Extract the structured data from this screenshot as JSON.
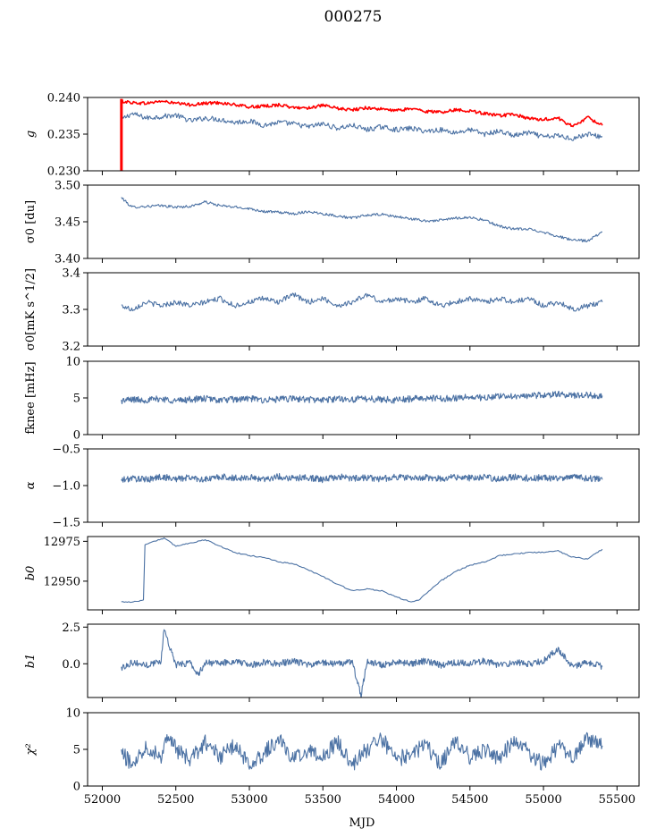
{
  "figure": {
    "title": "000275"
  },
  "chart_data": [
    {
      "type": "line",
      "ylabel": "g",
      "ylim": [
        0.23,
        0.24
      ],
      "yticks": [
        "0.230",
        "0.235",
        "0.240"
      ],
      "ytick_values": [
        0.23,
        0.235,
        0.24
      ],
      "xlim": [
        51900,
        55650
      ],
      "series": [
        {
          "color": "#4c72a4",
          "x": [
            52130,
            52200,
            52300,
            52400,
            52500,
            52600,
            52700,
            52800,
            52900,
            53000,
            53100,
            53200,
            53300,
            53400,
            53500,
            53600,
            53700,
            53800,
            53900,
            54000,
            54100,
            54200,
            54300,
            54400,
            54500,
            54600,
            54700,
            54800,
            54900,
            55000,
            55100,
            55200,
            55300,
            55400
          ],
          "y": [
            0.237,
            0.2378,
            0.2372,
            0.2374,
            0.2376,
            0.2368,
            0.2372,
            0.237,
            0.2366,
            0.2368,
            0.2362,
            0.2366,
            0.2364,
            0.236,
            0.2364,
            0.2358,
            0.2362,
            0.2356,
            0.236,
            0.2356,
            0.2358,
            0.2354,
            0.2356,
            0.2352,
            0.2356,
            0.235,
            0.2354,
            0.2348,
            0.2352,
            0.2346,
            0.2348,
            0.2344,
            0.235,
            0.2346
          ]
        },
        {
          "color": "#ff0000",
          "x": [
            52130,
            52200,
            52300,
            52400,
            52500,
            52600,
            52700,
            52800,
            52900,
            53000,
            53100,
            53200,
            53300,
            53400,
            53500,
            53600,
            53700,
            53800,
            53900,
            54000,
            54100,
            54200,
            54300,
            54400,
            54500,
            54600,
            54700,
            54800,
            54900,
            55000,
            55100,
            55200,
            55300,
            55400
          ],
          "y": [
            0.2395,
            0.2393,
            0.2392,
            0.2395,
            0.2392,
            0.239,
            0.2392,
            0.2393,
            0.239,
            0.2387,
            0.2388,
            0.239,
            0.2386,
            0.2386,
            0.2389,
            0.2385,
            0.2383,
            0.2386,
            0.2384,
            0.2382,
            0.2385,
            0.2381,
            0.238,
            0.2383,
            0.2382,
            0.2378,
            0.2375,
            0.2377,
            0.2371,
            0.237,
            0.2372,
            0.236,
            0.2373,
            0.2362
          ]
        }
      ],
      "glitch_series": {
        "color": "#ff0000",
        "x": 52130,
        "y_from": 0.2398,
        "y_to": 0.23
      }
    },
    {
      "type": "line",
      "ylabel": "σ0 [du]",
      "ylim": [
        3.4,
        3.5
      ],
      "yticks": [
        "3.40",
        "3.45",
        "3.50"
      ],
      "ytick_values": [
        3.4,
        3.45,
        3.5
      ],
      "xlim": [
        51900,
        55650
      ],
      "series": [
        {
          "color": "#4c72a4",
          "x": [
            52130,
            52200,
            52300,
            52400,
            52500,
            52600,
            52700,
            52800,
            52900,
            53000,
            53100,
            53200,
            53300,
            53400,
            53500,
            53600,
            53700,
            53800,
            53900,
            54000,
            54100,
            54200,
            54300,
            54400,
            54500,
            54600,
            54700,
            54800,
            54900,
            55000,
            55100,
            55200,
            55300,
            55400
          ],
          "y": [
            3.483,
            3.47,
            3.471,
            3.472,
            3.47,
            3.471,
            3.477,
            3.472,
            3.47,
            3.468,
            3.464,
            3.463,
            3.461,
            3.464,
            3.461,
            3.458,
            3.455,
            3.459,
            3.46,
            3.457,
            3.454,
            3.451,
            3.452,
            3.455,
            3.456,
            3.452,
            3.444,
            3.44,
            3.44,
            3.436,
            3.43,
            3.425,
            3.424,
            3.436
          ]
        }
      ]
    },
    {
      "type": "line",
      "ylabel": "σ0[mK s^1/2]",
      "ylim": [
        3.2,
        3.4
      ],
      "yticks": [
        "3.2",
        "3.3",
        "3.4"
      ],
      "ytick_values": [
        3.2,
        3.3,
        3.4
      ],
      "xlim": [
        51900,
        55650
      ],
      "series": [
        {
          "color": "#4c72a4",
          "x": [
            52130,
            52200,
            52300,
            52400,
            52500,
            52600,
            52700,
            52800,
            52900,
            53000,
            53100,
            53200,
            53300,
            53400,
            53500,
            53600,
            53700,
            53800,
            53900,
            54000,
            54100,
            54200,
            54300,
            54400,
            54500,
            54600,
            54700,
            54800,
            54900,
            55000,
            55100,
            55200,
            55300,
            55400
          ],
          "y": [
            3.31,
            3.3,
            3.32,
            3.31,
            3.32,
            3.31,
            3.32,
            3.33,
            3.31,
            3.32,
            3.33,
            3.32,
            3.34,
            3.32,
            3.33,
            3.31,
            3.32,
            3.34,
            3.32,
            3.33,
            3.32,
            3.33,
            3.31,
            3.32,
            3.33,
            3.32,
            3.33,
            3.32,
            3.33,
            3.31,
            3.32,
            3.3,
            3.31,
            3.32
          ]
        }
      ]
    },
    {
      "type": "line",
      "ylabel": "fknee [mHz]",
      "ylim": [
        0,
        10
      ],
      "yticks": [
        "0",
        "5",
        "10"
      ],
      "ytick_values": [
        0,
        5,
        10
      ],
      "xlim": [
        51900,
        55650
      ],
      "series": [
        {
          "color": "#4c72a4",
          "x": [
            52130,
            52200,
            52300,
            52400,
            52500,
            52600,
            52700,
            52800,
            52900,
            53000,
            53100,
            53200,
            53300,
            53400,
            53500,
            53600,
            53700,
            53800,
            53900,
            54000,
            54100,
            54200,
            54300,
            54400,
            54500,
            54600,
            54700,
            54800,
            54900,
            55000,
            55100,
            55200,
            55300,
            55400
          ],
          "y": [
            4.6,
            4.8,
            4.7,
            4.9,
            4.6,
            4.8,
            4.9,
            4.7,
            4.8,
            4.9,
            4.7,
            4.8,
            4.9,
            4.8,
            4.7,
            4.9,
            4.8,
            4.9,
            4.8,
            4.7,
            4.9,
            5.0,
            4.9,
            5.0,
            5.1,
            5.0,
            5.2,
            5.3,
            5.2,
            5.4,
            5.5,
            5.3,
            5.4,
            5.3
          ]
        }
      ]
    },
    {
      "type": "line",
      "ylabel": "α",
      "ylim": [
        -1.5,
        -0.5
      ],
      "yticks": [
        "−1.5",
        "−1.0",
        "−0.5"
      ],
      "ytick_values": [
        -1.5,
        -1.0,
        -0.5
      ],
      "xlim": [
        51900,
        55650
      ],
      "series": [
        {
          "color": "#4c72a4",
          "x": [
            52130,
            52200,
            52300,
            52400,
            52500,
            52600,
            52700,
            52800,
            52900,
            53000,
            53100,
            53200,
            53300,
            53400,
            53500,
            53600,
            53700,
            53800,
            53900,
            54000,
            54100,
            54200,
            54300,
            54400,
            54500,
            54600,
            54700,
            54800,
            54900,
            55000,
            55100,
            55200,
            55300,
            55400
          ],
          "y": [
            -0.93,
            -0.9,
            -0.92,
            -0.88,
            -0.91,
            -0.89,
            -0.92,
            -0.88,
            -0.9,
            -0.89,
            -0.91,
            -0.88,
            -0.9,
            -0.89,
            -0.92,
            -0.88,
            -0.9,
            -0.89,
            -0.91,
            -0.88,
            -0.9,
            -0.89,
            -0.91,
            -0.88,
            -0.9,
            -0.89,
            -0.91,
            -0.88,
            -0.9,
            -0.89,
            -0.91,
            -0.88,
            -0.9,
            -0.92
          ]
        }
      ]
    },
    {
      "type": "line",
      "ylabel": "b0",
      "ylim": [
        12932,
        12978
      ],
      "yticks": [
        "12950",
        "12975"
      ],
      "ytick_values": [
        12950,
        12975
      ],
      "xlim": [
        51900,
        55650
      ],
      "series": [
        {
          "color": "#4c72a4",
          "x": [
            52130,
            52200,
            52280,
            52290,
            52350,
            52420,
            52500,
            52600,
            52700,
            52800,
            52900,
            53000,
            53100,
            53200,
            53300,
            53400,
            53500,
            53600,
            53700,
            53800,
            53900,
            54000,
            54100,
            54150,
            54200,
            54300,
            54400,
            54500,
            54600,
            54700,
            54800,
            54900,
            55000,
            55100,
            55200,
            55300,
            55400
          ],
          "y": [
            12937,
            12937,
            12938,
            12973,
            12975,
            12977,
            12972,
            12974,
            12976,
            12972,
            12968,
            12966,
            12965,
            12962,
            12961,
            12957,
            12953,
            12948,
            12944,
            12945,
            12944,
            12940,
            12937,
            12938,
            12942,
            12950,
            12956,
            12960,
            12962,
            12966,
            12967,
            12968,
            12968,
            12969,
            12965,
            12964,
            12970
          ]
        }
      ]
    },
    {
      "type": "line",
      "ylabel": "b1",
      "ylim": [
        -2.3,
        2.7
      ],
      "yticks": [
        "0.0",
        "2.5"
      ],
      "ytick_values": [
        0.0,
        2.5
      ],
      "xlim": [
        51900,
        55650
      ],
      "series": [
        {
          "color": "#4c72a4",
          "x": [
            52130,
            52200,
            52300,
            52400,
            52420,
            52500,
            52600,
            52650,
            52700,
            52800,
            52900,
            53000,
            53100,
            53200,
            53300,
            53400,
            53500,
            53600,
            53700,
            53760,
            53800,
            53900,
            54000,
            54100,
            54200,
            54300,
            54400,
            54500,
            54600,
            54700,
            54800,
            54900,
            55000,
            55100,
            55200,
            55300,
            55400
          ],
          "y": [
            -0.3,
            0.1,
            -0.1,
            0.2,
            2.4,
            -0.1,
            0.1,
            -0.8,
            0.1,
            0.0,
            0.2,
            -0.1,
            0.1,
            0.0,
            0.2,
            -0.1,
            0.1,
            0.0,
            0.1,
            -2.2,
            0.2,
            -0.1,
            0.1,
            0.0,
            0.2,
            -0.1,
            0.1,
            0.0,
            0.2,
            -0.1,
            0.1,
            0.0,
            0.2,
            1.0,
            -0.2,
            0.1,
            -0.2
          ]
        }
      ]
    },
    {
      "type": "line",
      "ylabel": "χ²",
      "ylim": [
        0,
        10
      ],
      "yticks": [
        "0",
        "5",
        "10"
      ],
      "ytick_values": [
        0,
        5,
        10
      ],
      "xlim": [
        51900,
        55650
      ],
      "xlabel": "MJD",
      "xticks": [
        "52000",
        "52500",
        "53000",
        "53500",
        "54000",
        "54500",
        "55000",
        "55500"
      ],
      "xtick_values": [
        52000,
        52500,
        53000,
        53500,
        54000,
        54500,
        55000,
        55500
      ],
      "series": [
        {
          "color": "#4c72a4",
          "x": [
            52130,
            52200,
            52300,
            52400,
            52450,
            52500,
            52600,
            52700,
            52800,
            52900,
            53000,
            53100,
            53200,
            53300,
            53400,
            53500,
            53600,
            53700,
            53800,
            53900,
            54000,
            54100,
            54200,
            54300,
            54400,
            54500,
            54600,
            54700,
            54800,
            54900,
            55000,
            55100,
            55200,
            55300,
            55400
          ],
          "y": [
            4.5,
            3.0,
            5.5,
            4.0,
            7.5,
            5.0,
            3.5,
            6.0,
            4.0,
            5.5,
            3.0,
            4.5,
            6.5,
            3.5,
            5.0,
            4.0,
            6.0,
            3.0,
            5.0,
            6.5,
            3.5,
            4.5,
            5.5,
            3.0,
            6.0,
            4.0,
            5.0,
            3.5,
            6.5,
            4.5,
            3.0,
            5.5,
            4.0,
            6.5,
            5.5
          ]
        }
      ]
    }
  ]
}
